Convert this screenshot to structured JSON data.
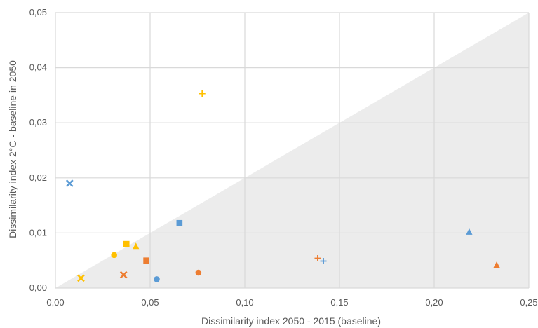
{
  "chart_data": {
    "type": "scatter",
    "xlabel": "Dissimilarity index 2050 - 2015 (baseline)",
    "ylabel": "Dissimilarity index 2°C - baseline in 2050",
    "xlim": [
      0,
      0.25
    ],
    "ylim": [
      0,
      0.05
    ],
    "x_ticks": [
      {
        "value": 0.0,
        "label": "0,00"
      },
      {
        "value": 0.05,
        "label": "0,05"
      },
      {
        "value": 0.1,
        "label": "0,10"
      },
      {
        "value": 0.15,
        "label": "0,15"
      },
      {
        "value": 0.2,
        "label": "0,20"
      },
      {
        "value": 0.25,
        "label": "0,25"
      }
    ],
    "y_ticks": [
      {
        "value": 0.0,
        "label": "0,00"
      },
      {
        "value": 0.01,
        "label": "0,01"
      },
      {
        "value": 0.02,
        "label": "0,02"
      },
      {
        "value": 0.03,
        "label": "0,03"
      },
      {
        "value": 0.04,
        "label": "0,04"
      },
      {
        "value": 0.05,
        "label": "0,05"
      }
    ],
    "grid": true,
    "shaded_region": {
      "below_line": {
        "from": [
          0,
          0
        ],
        "to": [
          0.25,
          0.05
        ]
      },
      "color": "#ececec"
    },
    "colors": {
      "blue": "#5b9bd5",
      "orange": "#ed7d31",
      "yellow": "#ffc000"
    },
    "points": [
      {
        "x": 0.0075,
        "y": 0.019,
        "marker": "x",
        "color": "#5b9bd5"
      },
      {
        "x": 0.0135,
        "y": 0.0018,
        "marker": "x",
        "color": "#ffc000"
      },
      {
        "x": 0.031,
        "y": 0.006,
        "marker": "circle",
        "color": "#ffc000"
      },
      {
        "x": 0.036,
        "y": 0.0024,
        "marker": "x",
        "color": "#ed7d31"
      },
      {
        "x": 0.0375,
        "y": 0.008,
        "marker": "square",
        "color": "#ffc000"
      },
      {
        "x": 0.0425,
        "y": 0.0076,
        "marker": "triangle",
        "color": "#ffc000"
      },
      {
        "x": 0.048,
        "y": 0.005,
        "marker": "square",
        "color": "#ed7d31"
      },
      {
        "x": 0.0535,
        "y": 0.0016,
        "marker": "circle",
        "color": "#5b9bd5"
      },
      {
        "x": 0.0655,
        "y": 0.0118,
        "marker": "square",
        "color": "#5b9bd5"
      },
      {
        "x": 0.0755,
        "y": 0.0028,
        "marker": "circle",
        "color": "#ed7d31"
      },
      {
        "x": 0.0775,
        "y": 0.0353,
        "marker": "plus",
        "color": "#ffc000"
      },
      {
        "x": 0.1385,
        "y": 0.0054,
        "marker": "plus",
        "color": "#ed7d31"
      },
      {
        "x": 0.1415,
        "y": 0.0049,
        "marker": "plus",
        "color": "#5b9bd5"
      },
      {
        "x": 0.2185,
        "y": 0.0102,
        "marker": "triangle",
        "color": "#5b9bd5"
      },
      {
        "x": 0.233,
        "y": 0.0042,
        "marker": "triangle",
        "color": "#ed7d31"
      }
    ]
  }
}
